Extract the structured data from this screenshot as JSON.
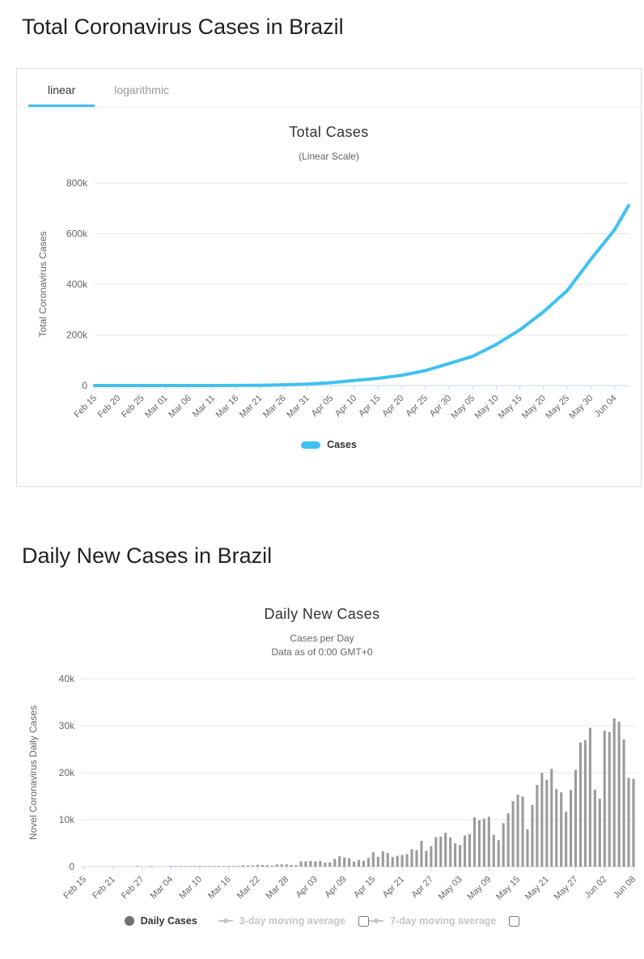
{
  "page": {
    "section1_title": "Total Coronavirus Cases in Brazil",
    "section2_title": "Daily New Cases in Brazil"
  },
  "tabs": {
    "linear": "linear",
    "logarithmic": "logarithmic"
  },
  "colors": {
    "accent": "#3fc1f0",
    "bar": "#9b9b9b",
    "legend_marker": "#707070",
    "muted_legend": "#c6c6c6",
    "grid": "#e6e6e6",
    "axis_line": "#ccd6eb",
    "axis_text": "#666666"
  },
  "chart_data": [
    {
      "type": "line",
      "title": "Total Cases",
      "subtitle": "(Linear Scale)",
      "ylabel": "Total Coronavirus Cases",
      "ylim": [
        0,
        800000
      ],
      "grid": true,
      "legend_position": "bottom",
      "yticks": [
        {
          "value": 0,
          "label": "0"
        },
        {
          "value": 200000,
          "label": "200k"
        },
        {
          "value": 400000,
          "label": "400k"
        },
        {
          "value": 600000,
          "label": "600k"
        },
        {
          "value": 800000,
          "label": "800k"
        }
      ],
      "series": [
        {
          "name": "Cases",
          "color": "#3fc1f0",
          "points": [
            {
              "label": "Feb 15",
              "day": 0,
              "value": 0
            },
            {
              "label": "Feb 20",
              "day": 5,
              "value": 0
            },
            {
              "label": "Feb 25",
              "day": 10,
              "value": 0
            },
            {
              "label": "Mar 01",
              "day": 15,
              "value": 2
            },
            {
              "label": "Mar 06",
              "day": 20,
              "value": 13
            },
            {
              "label": "Mar 11",
              "day": 25,
              "value": 52
            },
            {
              "label": "Mar 16",
              "day": 30,
              "value": 235
            },
            {
              "label": "Mar 21",
              "day": 35,
              "value": 1021
            },
            {
              "label": "Mar 26",
              "day": 40,
              "value": 2988
            },
            {
              "label": "Mar 31",
              "day": 45,
              "value": 5812
            },
            {
              "label": "Apr 05",
              "day": 50,
              "value": 11282
            },
            {
              "label": "Apr 10",
              "day": 55,
              "value": 19741
            },
            {
              "label": "Apr 15",
              "day": 60,
              "value": 28611
            },
            {
              "label": "Apr 20",
              "day": 65,
              "value": 40743
            },
            {
              "label": "Apr 25",
              "day": 70,
              "value": 59324
            },
            {
              "label": "Apr 30",
              "day": 75,
              "value": 87187
            },
            {
              "label": "May 05",
              "day": 80,
              "value": 115455
            },
            {
              "label": "May 10",
              "day": 85,
              "value": 162699
            },
            {
              "label": "May 15",
              "day": 90,
              "value": 220291
            },
            {
              "label": "May 20",
              "day": 95,
              "value": 291579
            },
            {
              "label": "May 25",
              "day": 100,
              "value": 374898
            },
            {
              "label": "May 30",
              "day": 105,
              "value": 498440
            },
            {
              "label": "Jun 04",
              "day": 110,
              "value": 614941
            },
            {
              "label": "",
              "day": 113,
              "value": 710887
            }
          ]
        }
      ]
    },
    {
      "type": "bar",
      "title": "Daily New Cases",
      "subtitle_lines": [
        "Cases per Day",
        "Data as of 0:00 GMT+0"
      ],
      "ylabel": "Novel Coronavirus Daily Cases",
      "ylim": [
        0,
        40000
      ],
      "grid": true,
      "color": "#9b9b9b",
      "label_interval": 6,
      "yticks": [
        {
          "value": 0,
          "label": "0"
        },
        {
          "value": 10000,
          "label": "10k"
        },
        {
          "value": 20000,
          "label": "20k"
        },
        {
          "value": 30000,
          "label": "30k"
        },
        {
          "value": 40000,
          "label": "40k"
        }
      ],
      "x_tick_labels": [
        "Feb 15",
        "Feb 21",
        "Feb 27",
        "Mar 04",
        "Mar 10",
        "Mar 16",
        "Mar 22",
        "Mar 28",
        "Apr 03",
        "Apr 09",
        "Apr 15",
        "Apr 21",
        "Apr 27",
        "May 03",
        "May 09",
        "May 15",
        "May 21",
        "May 27",
        "Jun 02",
        "Jun 08"
      ],
      "values": [
        0,
        0,
        0,
        0,
        0,
        0,
        0,
        0,
        0,
        0,
        0,
        1,
        0,
        0,
        1,
        0,
        0,
        0,
        1,
        4,
        6,
        6,
        6,
        5,
        9,
        18,
        25,
        21,
        23,
        79,
        34,
        57,
        137,
        283,
        224,
        250,
        418,
        345,
        310,
        232,
        482,
        502,
        487,
        352,
        323,
        1138,
        1119,
        1208,
        1146,
        1222,
        852,
        926,
        1661,
        2210,
        1930,
        1781,
        1089,
        1442,
        1261,
        1832,
        3058,
        2105,
        3257,
        2917,
        2055,
        2336,
        2498,
        2678,
        3735,
        3503,
        5514,
        3379,
        4346,
        6276,
        6398,
        7218,
        6209,
        4970,
        4588,
        6633,
        6935,
        10503,
        9888,
        10222,
        10611,
        6760,
        5632,
        9258,
        11385,
        13944,
        15305,
        14919,
        7938,
        13140,
        17408,
        19951,
        18508,
        20803,
        16508,
        15813,
        11687,
        16324,
        20599,
        26417,
        26928,
        29570,
        16409,
        14448,
        28936,
        28633,
        31571,
        30830,
        27075,
        18912,
        18679
      ],
      "legend": [
        {
          "label": "Daily Cases",
          "marker": "circle",
          "active": true,
          "checkbox": false
        },
        {
          "label": "3-day moving average",
          "marker": "line-circle",
          "active": false,
          "checkbox": true
        },
        {
          "label": "7-day moving average",
          "marker": "line-circle",
          "active": false,
          "checkbox": true
        }
      ]
    }
  ]
}
